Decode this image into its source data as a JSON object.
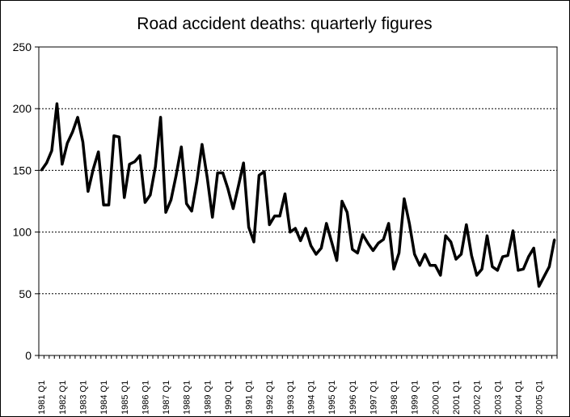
{
  "chart_data": {
    "type": "line",
    "title": "Road accident deaths: quarterly figures",
    "xlabel": "",
    "ylabel": "",
    "ylim": [
      0,
      250
    ],
    "yticks": [
      0,
      50,
      100,
      150,
      200,
      250
    ],
    "grid": "horizontal dotted",
    "legend": "none",
    "line_color": "#000000",
    "x_start": "1981 Q1",
    "x_tick_labels": [
      "1981 Q1",
      "1982 Q1",
      "1983 Q1",
      "1984 Q1",
      "1985 Q1",
      "1986 Q1",
      "1987 Q1",
      "1988 Q1",
      "1989 Q1",
      "1990 Q1",
      "1991 Q1",
      "1992 Q1",
      "1993 Q1",
      "1994 Q1",
      "1995 Q1",
      "1996 Q1",
      "1997 Q1",
      "1998 Q1",
      "1999 Q1",
      "2000 Q1",
      "2001 Q1",
      "2002 Q1",
      "2003 Q1",
      "2004 Q1",
      "2005 Q1"
    ],
    "series": [
      {
        "values": [
          150,
          156,
          166,
          204,
          155,
          172,
          181,
          193,
          173,
          133,
          151,
          165,
          122,
          122,
          178,
          177,
          128,
          155,
          157,
          162,
          124,
          130,
          153,
          193,
          116,
          126,
          146,
          169,
          123,
          117,
          141,
          171,
          144,
          112,
          148,
          148,
          135,
          119,
          137,
          156,
          104,
          92,
          146,
          149,
          106,
          113,
          113,
          131,
          100,
          103,
          93,
          103,
          89,
          82,
          87,
          107,
          92,
          77,
          125,
          116,
          86,
          83,
          98,
          91,
          85,
          91,
          94,
          107,
          70,
          83,
          127,
          107,
          82,
          73,
          82,
          73,
          73,
          65,
          97,
          92,
          78,
          82,
          106,
          81,
          65,
          70,
          97,
          72,
          69,
          80,
          81,
          101,
          69,
          70,
          80,
          87,
          56,
          64,
          72,
          94
        ]
      }
    ]
  }
}
